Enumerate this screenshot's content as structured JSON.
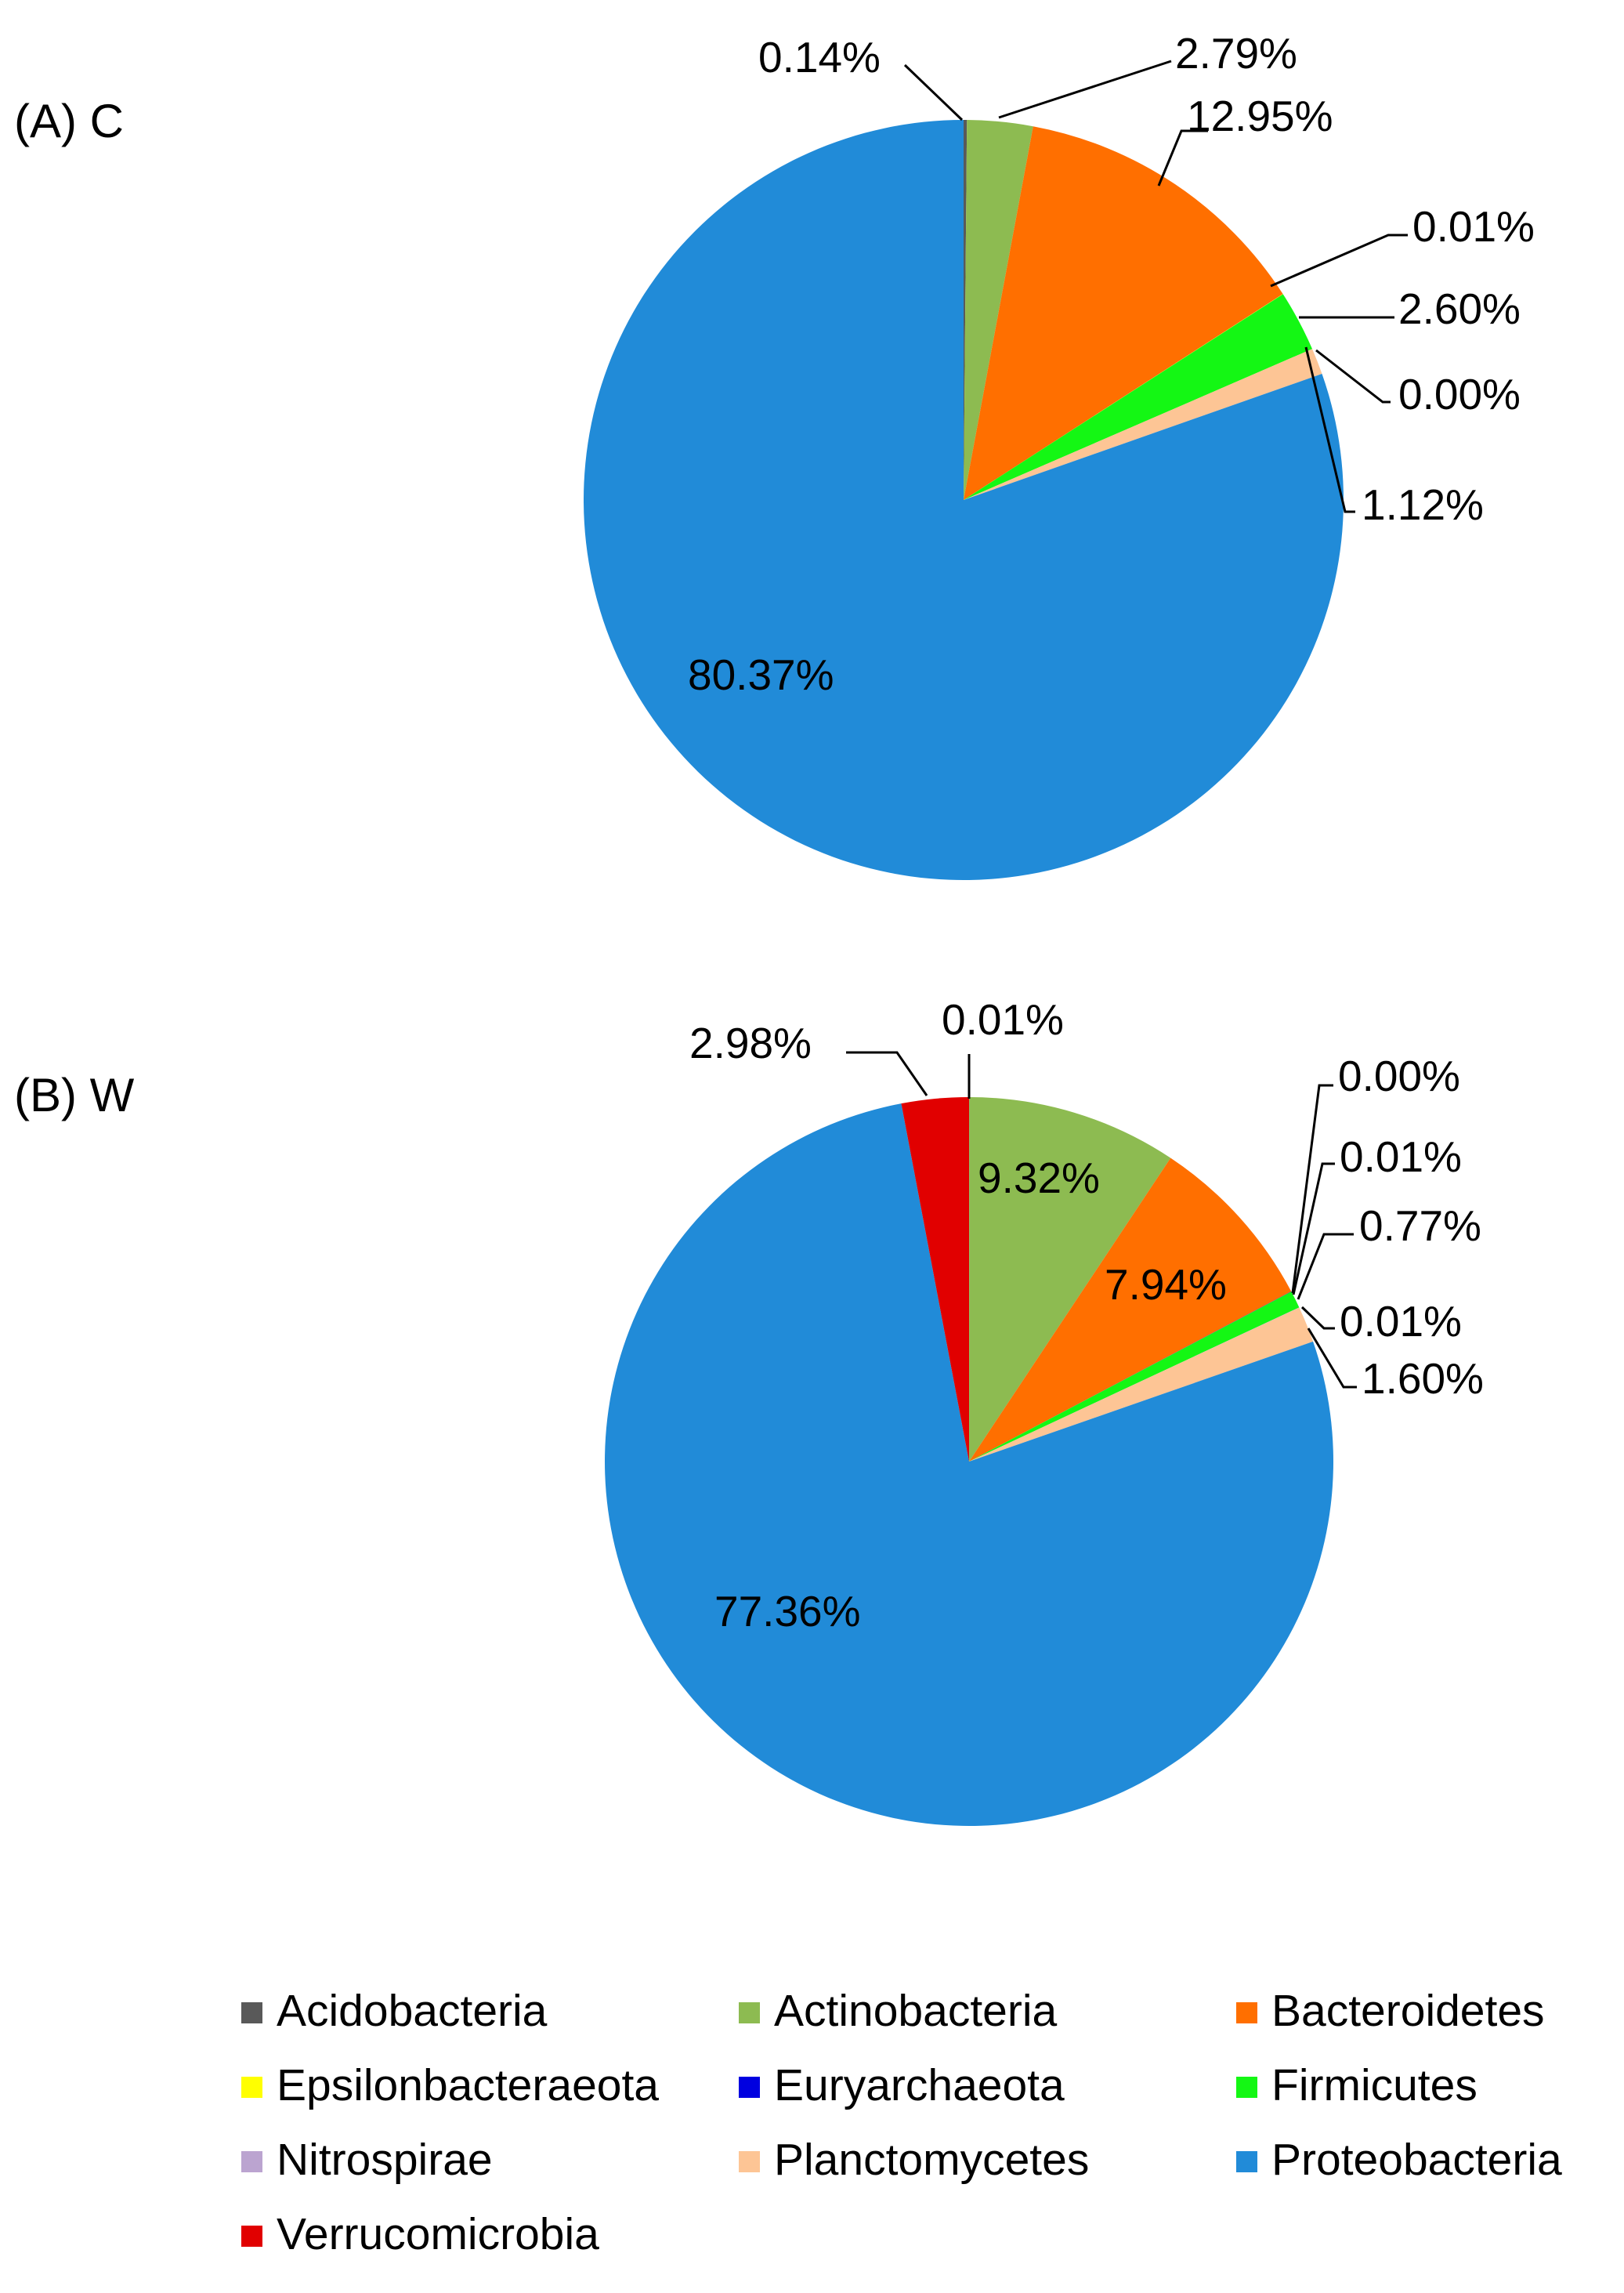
{
  "colors": {
    "Acidobacteria": "#595959",
    "Actinobacteria": "#8DBB51",
    "Bacteroidetes": "#FF6F00",
    "Epsilonbacteraeota": "#FFFF00",
    "Euryarchaeota": "#0000E0",
    "Firmicutes": "#14F714",
    "Nitrospirae": "#BBA4D0",
    "Planctomycetes": "#FDC595",
    "Proteobacteria": "#218BD8",
    "Verrucomicrobia": "#E10000"
  },
  "legend": {
    "items": [
      "Acidobacteria",
      "Actinobacteria",
      "Bacteroidetes",
      "Epsilonbacteraeota",
      "Euryarchaeota",
      "Firmicutes",
      "Nitrospirae",
      "Planctomycetes",
      "Proteobacteria",
      "Verrucomicrobia"
    ]
  },
  "chart_data": [
    {
      "type": "pie",
      "title": "(A) C",
      "categories": [
        "Acidobacteria",
        "Actinobacteria",
        "Bacteroidetes",
        "Epsilonbacteraeota",
        "Firmicutes",
        "Euryarchaeota",
        "Planctomycetes",
        "Proteobacteria",
        "Verrucomicrobia"
      ],
      "values": [
        0.14,
        2.79,
        12.95,
        0.01,
        2.6,
        0.0,
        1.12,
        80.37,
        0.0
      ],
      "labels": [
        "0.14%",
        "2.79%",
        "12.95%",
        "0.01%",
        "2.60%",
        "0.00%",
        "1.12%",
        "80.37%",
        ""
      ],
      "start_angle_deg": 0,
      "direction": "clockwise"
    },
    {
      "type": "pie",
      "title": "(B) W",
      "categories": [
        "Acidobacteria",
        "Actinobacteria",
        "Bacteroidetes",
        "Epsilonbacteraeota",
        "Euryarchaeota",
        "Firmicutes",
        "Nitrospirae",
        "Planctomycetes",
        "Proteobacteria",
        "Verrucomicrobia"
      ],
      "values": [
        0.01,
        9.32,
        7.94,
        0.0,
        0.01,
        0.77,
        0.01,
        1.6,
        77.36,
        2.98
      ],
      "labels": [
        "0.01%",
        "9.32%",
        "7.94%",
        "0.00%",
        "0.01%",
        "0.77%",
        "0.01%",
        "1.60%",
        "77.36%",
        "2.98%"
      ],
      "start_angle_deg": 0,
      "direction": "clockwise"
    }
  ]
}
